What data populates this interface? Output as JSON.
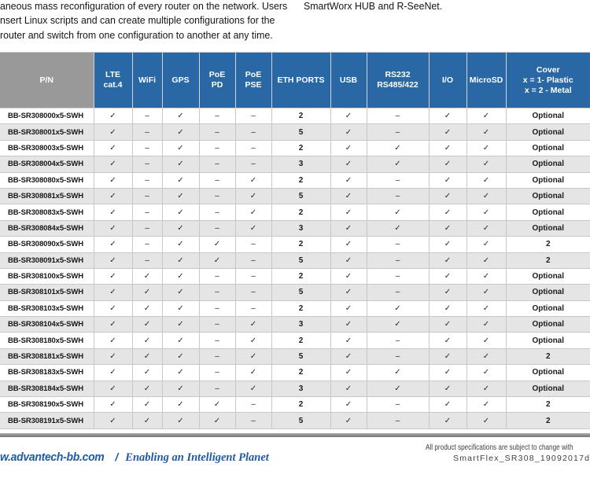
{
  "intro": {
    "left_lines": [
      "aneous mass reconfiguration of every router on the network. Users",
      "nsert Linux scripts and can create multiple configurations for the",
      "router and switch from one configuration to another at any time."
    ],
    "right_line": "SmartWorx HUB and R-SeeNet."
  },
  "table": {
    "columns": [
      "P/N",
      "LTE\ncat.4",
      "WiFi",
      "GPS",
      "PoE\nPD",
      "PoE\nPSE",
      "ETH PORTS",
      "USB",
      "RS232\nRS485/422",
      "I/O",
      "MicroSD",
      "Cover\nx = 1- Plastic\nx = 2 - Metal"
    ],
    "rows": [
      {
        "pn": "BB-SR308000x5-SWH",
        "cells": [
          "✓",
          "–",
          "✓",
          "–",
          "–",
          "2",
          "✓",
          "–",
          "✓",
          "✓",
          "Optional"
        ]
      },
      {
        "pn": "BB-SR308001x5-SWH",
        "cells": [
          "✓",
          "–",
          "✓",
          "–",
          "–",
          "5",
          "✓",
          "–",
          "✓",
          "✓",
          "Optional"
        ]
      },
      {
        "pn": "BB-SR308003x5-SWH",
        "cells": [
          "✓",
          "–",
          "✓",
          "–",
          "–",
          "2",
          "✓",
          "✓",
          "✓",
          "✓",
          "Optional"
        ]
      },
      {
        "pn": "BB-SR308004x5-SWH",
        "cells": [
          "✓",
          "–",
          "✓",
          "–",
          "–",
          "3",
          "✓",
          "✓",
          "✓",
          "✓",
          "Optional"
        ]
      },
      {
        "pn": "BB-SR308080x5-SWH",
        "cells": [
          "✓",
          "–",
          "✓",
          "–",
          "✓",
          "2",
          "✓",
          "–",
          "✓",
          "✓",
          "Optional"
        ]
      },
      {
        "pn": "BB-SR308081x5-SWH",
        "cells": [
          "✓",
          "–",
          "✓",
          "–",
          "✓",
          "5",
          "✓",
          "–",
          "✓",
          "✓",
          "Optional"
        ]
      },
      {
        "pn": "BB-SR308083x5-SWH",
        "cells": [
          "✓",
          "–",
          "✓",
          "–",
          "✓",
          "2",
          "✓",
          "✓",
          "✓",
          "✓",
          "Optional"
        ]
      },
      {
        "pn": "BB-SR308084x5-SWH",
        "cells": [
          "✓",
          "–",
          "✓",
          "–",
          "✓",
          "3",
          "✓",
          "✓",
          "✓",
          "✓",
          "Optional"
        ]
      },
      {
        "pn": "BB-SR308090x5-SWH",
        "cells": [
          "✓",
          "–",
          "✓",
          "✓",
          "–",
          "2",
          "✓",
          "–",
          "✓",
          "✓",
          "2"
        ]
      },
      {
        "pn": "BB-SR308091x5-SWH",
        "cells": [
          "✓",
          "–",
          "✓",
          "✓",
          "–",
          "5",
          "✓",
          "–",
          "✓",
          "✓",
          "2"
        ]
      },
      {
        "pn": "BB-SR308100x5-SWH",
        "cells": [
          "✓",
          "✓",
          "✓",
          "–",
          "–",
          "2",
          "✓",
          "–",
          "✓",
          "✓",
          "Optional"
        ]
      },
      {
        "pn": "BB-SR308101x5-SWH",
        "cells": [
          "✓",
          "✓",
          "✓",
          "–",
          "–",
          "5",
          "✓",
          "–",
          "✓",
          "✓",
          "Optional"
        ]
      },
      {
        "pn": "BB-SR308103x5-SWH",
        "cells": [
          "✓",
          "✓",
          "✓",
          "–",
          "–",
          "2",
          "✓",
          "✓",
          "✓",
          "✓",
          "Optional"
        ]
      },
      {
        "pn": "BB-SR308104x5-SWH",
        "cells": [
          "✓",
          "✓",
          "✓",
          "–",
          "✓",
          "3",
          "✓",
          "✓",
          "✓",
          "✓",
          "Optional"
        ]
      },
      {
        "pn": "BB-SR308180x5-SWH",
        "cells": [
          "✓",
          "✓",
          "✓",
          "–",
          "✓",
          "2",
          "✓",
          "–",
          "✓",
          "✓",
          "Optional"
        ]
      },
      {
        "pn": "BB-SR308181x5-SWH",
        "cells": [
          "✓",
          "✓",
          "✓",
          "–",
          "✓",
          "5",
          "✓",
          "–",
          "✓",
          "✓",
          "2"
        ]
      },
      {
        "pn": "BB-SR308183x5-SWH",
        "cells": [
          "✓",
          "✓",
          "✓",
          "–",
          "✓",
          "2",
          "✓",
          "✓",
          "✓",
          "✓",
          "Optional"
        ]
      },
      {
        "pn": "BB-SR308184x5-SWH",
        "cells": [
          "✓",
          "✓",
          "✓",
          "–",
          "✓",
          "3",
          "✓",
          "✓",
          "✓",
          "✓",
          "Optional"
        ]
      },
      {
        "pn": "BB-SR308190x5-SWH",
        "cells": [
          "✓",
          "✓",
          "✓",
          "✓",
          "–",
          "2",
          "✓",
          "–",
          "✓",
          "✓",
          "2"
        ]
      },
      {
        "pn": "BB-SR308191x5-SWH",
        "cells": [
          "✓",
          "✓",
          "✓",
          "✓",
          "–",
          "5",
          "✓",
          "–",
          "✓",
          "✓",
          "2"
        ]
      }
    ]
  },
  "footer": {
    "website": "w.advantech-bb.com",
    "separator": "/",
    "tagline": "Enabling an Intelligent Planet",
    "note_line1": "All product specifications are subject to change with",
    "note_line2": "SmartFlex_SR308_19092017d"
  },
  "colors": {
    "header_blue": "#2A68A5",
    "header_gray": "#999999",
    "row_alt": "#E5E5E5",
    "footer_blue": "#1D5CA4",
    "divider_gray": "#ACACAC"
  }
}
